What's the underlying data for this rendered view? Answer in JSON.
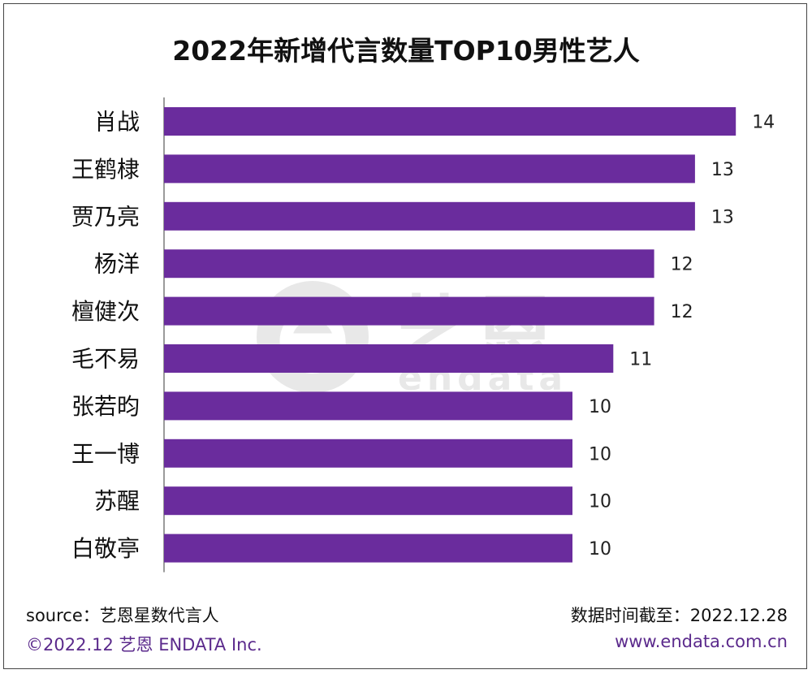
{
  "chart_data": {
    "type": "bar",
    "orientation": "horizontal",
    "title": "2022年新增代言数量TOP10男性艺人",
    "categories": [
      "肖战",
      "王鹤棣",
      "贾乃亮",
      "杨洋",
      "檀健次",
      "毛不易",
      "张若昀",
      "王一博",
      "苏醒",
      "白敬亭"
    ],
    "values": [
      14,
      13,
      13,
      12,
      12,
      11,
      10,
      10,
      10,
      10
    ],
    "bar_color": "#6a2c9d",
    "grid": false,
    "legend": "none"
  },
  "watermark": {
    "brand": "艺恩",
    "sub": "endata"
  },
  "footer": {
    "source": "source：艺恩星数代言人",
    "date": "数据时间截至：2022.12.28",
    "copyright": "©2022.12  艺恩 ENDATA Inc.",
    "website": "www.endata.com.cn"
  },
  "colors": {
    "bar": "#6a2c9d",
    "axis": "#7a7a7a",
    "footer_accent": "#5b2a8c"
  }
}
